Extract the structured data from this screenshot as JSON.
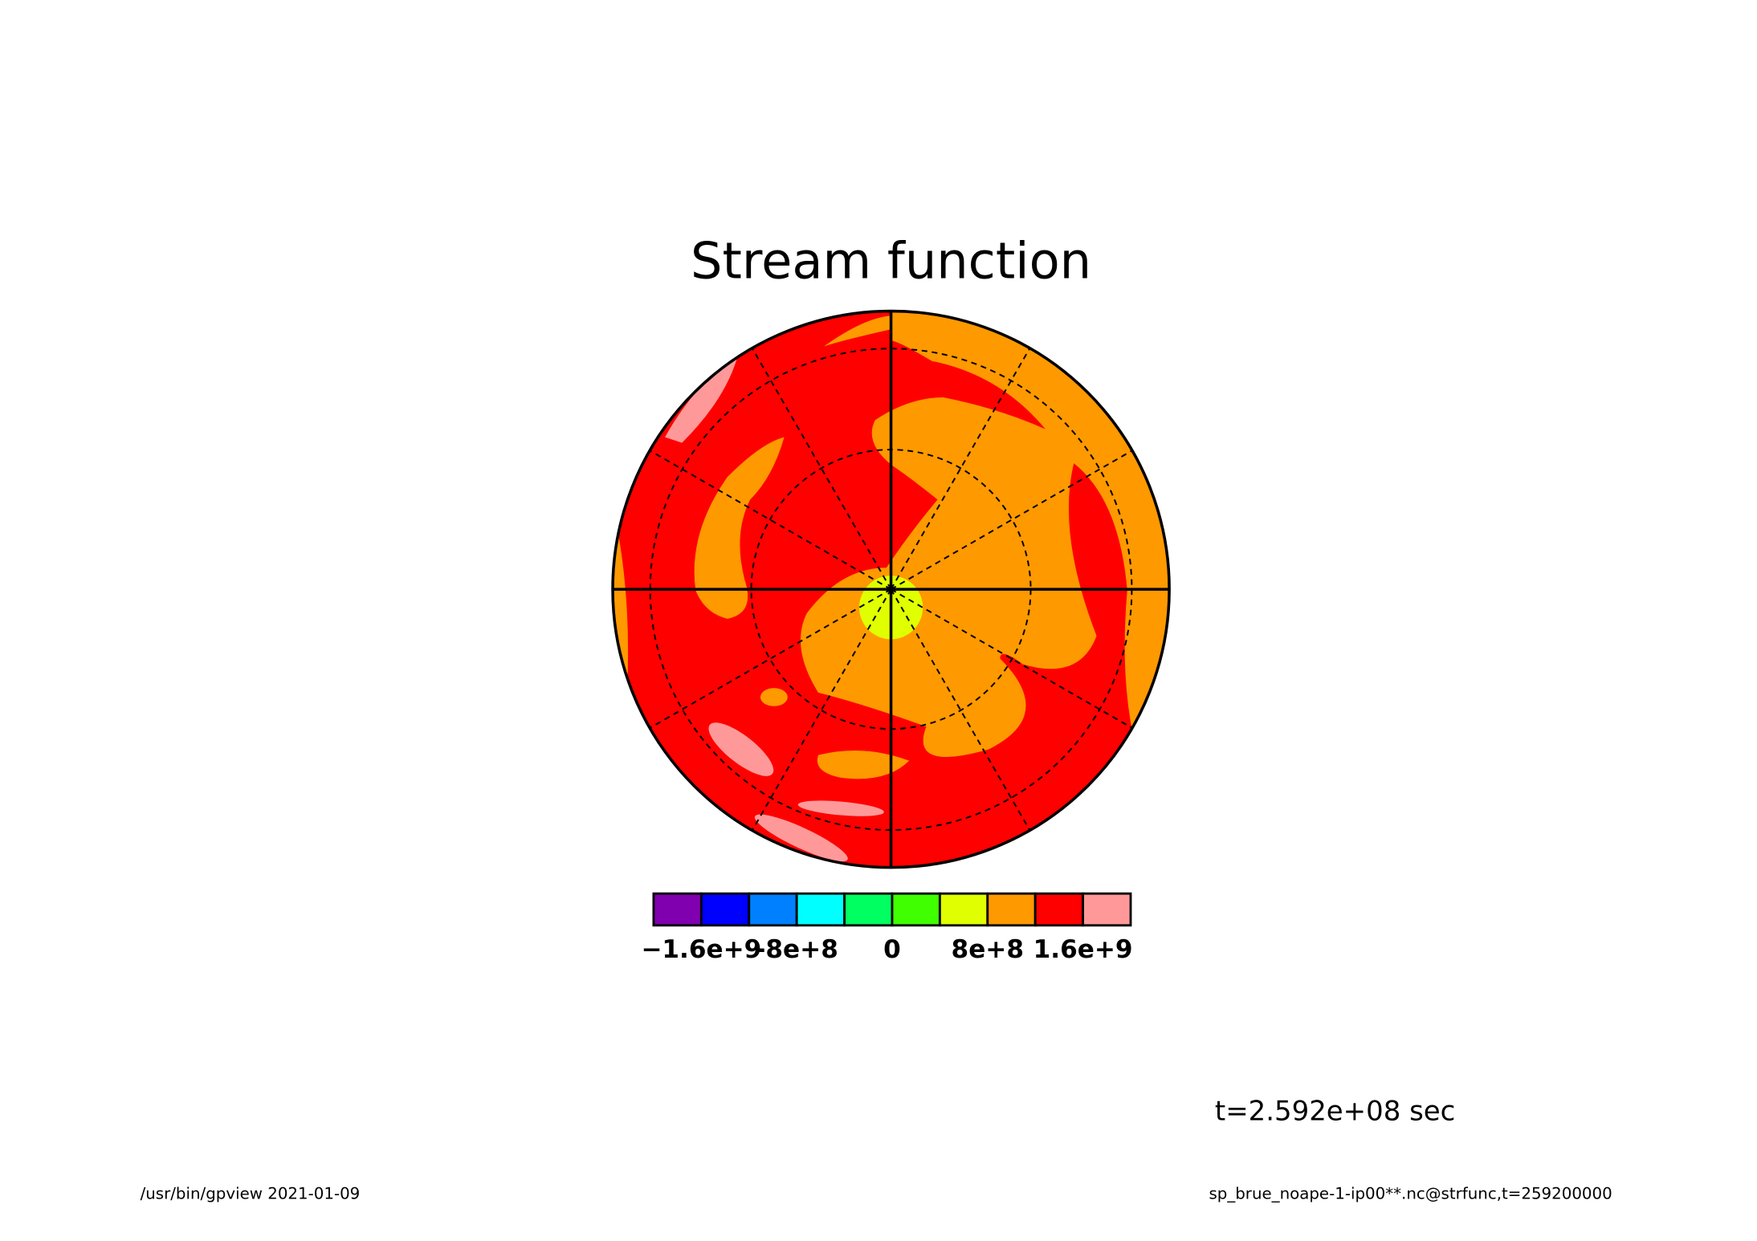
{
  "chart_data": {
    "type": "contour",
    "title": "Stream function",
    "annotation": "t=2.592e+08 sec",
    "footer_left": "/usr/bin/gpview  2021-01-09",
    "footer_right": "sp_brue_noape-1-ip00**.nc@strfunc,t=259200000",
    "colorbar": {
      "bins": [
        -2000000000,
        -1600000000,
        -1200000000,
        -800000000,
        -400000000,
        0,
        400000000,
        800000000,
        1200000000,
        1600000000,
        2000000000
      ],
      "colors": [
        "#8000b0",
        "#0000ff",
        "#0080ff",
        "#00ffff",
        "#00ff60",
        "#40ff00",
        "#e0ff00",
        "#ff9900",
        "#ff0000",
        "#ff9999"
      ],
      "ticks": [
        {
          "value": -1600000000,
          "label": "−1.6e+9"
        },
        {
          "value": -800000000,
          "label": "-8e+8"
        },
        0,
        {
          "value": 800000000,
          "label": "8e+8"
        },
        {
          "value": 1600000000,
          "label": "1.6e+9"
        }
      ]
    }
  }
}
